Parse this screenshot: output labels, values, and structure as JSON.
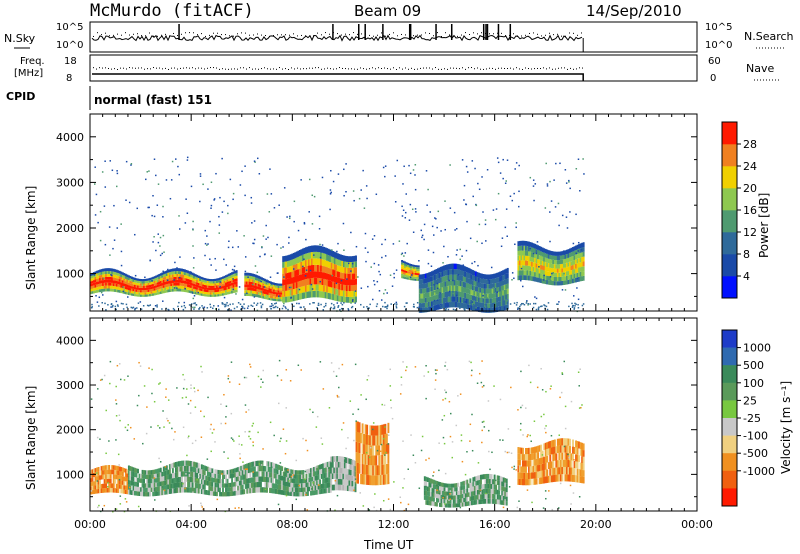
{
  "header": {
    "title": "McMurdo (fitACF)",
    "beam": "Beam 09",
    "date": "14/Sep/2010"
  },
  "top_panels": {
    "nsky_label": "N.Sky",
    "nsearch_label": "N.Search",
    "noise_ticks_left": [
      "10^5",
      "10^0"
    ],
    "noise_ticks_right": [
      "10^5",
      "10^0"
    ],
    "freq_label_1": "Freq.",
    "freq_label_2": "[MHz]",
    "freq_ticks": [
      "18",
      "8"
    ],
    "nave_label": "Nave",
    "nave_ticks": [
      "60",
      "0"
    ],
    "cpid_label": "CPID",
    "cpid_value": "normal (fast) 151"
  },
  "chart_data": [
    {
      "type": "heatmap",
      "name": "Power",
      "ylabel": "Slant Range [km]",
      "colorbar_label": "Power [dB]",
      "ylim": [
        180,
        4500
      ],
      "xlim": [
        "00:00",
        "24:00"
      ],
      "yticks": [
        1000,
        2000,
        3000,
        4000
      ],
      "colorbar_ticks": [
        4,
        8,
        12,
        16,
        20,
        24,
        28
      ],
      "colors": [
        "#0010ff",
        "#1a4aa8",
        "#2f6a9a",
        "#4f9a70",
        "#8ec850",
        "#f0d000",
        "#f08020",
        "#ff1a00"
      ],
      "regions": [
        {
          "t0": 0.0,
          "t1": 5.8,
          "r0": 550,
          "r1": 1000,
          "level": 7
        },
        {
          "t0": 6.1,
          "t1": 7.6,
          "r0": 450,
          "r1": 900,
          "level": 7
        },
        {
          "t0": 7.6,
          "t1": 10.5,
          "r0": 420,
          "r1": 1500,
          "level": 7
        },
        {
          "t0": 12.3,
          "t1": 13.0,
          "r0": 900,
          "r1": 1300,
          "level": 6
        },
        {
          "t0": 13.0,
          "t1": 16.5,
          "r0": 200,
          "r1": 1100,
          "level": 3
        },
        {
          "t0": 16.9,
          "t1": 19.5,
          "r0": 800,
          "r1": 1600,
          "level": 5
        }
      ]
    },
    {
      "type": "heatmap",
      "name": "Velocity",
      "ylabel": "Slant Range [km]",
      "xlabel": "Time UT",
      "colorbar_label": "Velocity [m s⁻¹]",
      "ylim": [
        180,
        4500
      ],
      "xlim": [
        "00:00",
        "24:00"
      ],
      "yticks": [
        1000,
        2000,
        3000,
        4000
      ],
      "xticks": [
        "00:00",
        "04:00",
        "08:00",
        "12:00",
        "16:00",
        "20:00",
        "00:00"
      ],
      "colorbar_ticks": [
        "1000",
        "500",
        "100",
        "25",
        "-25",
        "-100",
        "-500",
        "-1000"
      ],
      "colors": [
        "#1e3cc8",
        "#2f6ab0",
        "#3a8a5a",
        "#5a9a5a",
        "#78c840",
        "#c8c8c8",
        "#f0d080",
        "#f09020",
        "#f06010",
        "#ff1a00"
      ],
      "regions": [
        {
          "t0": 0.0,
          "t1": 1.5,
          "r0": 550,
          "r1": 1100,
          "level": "orange"
        },
        {
          "t0": 1.5,
          "t1": 9.5,
          "r0": 550,
          "r1": 1200,
          "level": "green"
        },
        {
          "t0": 9.5,
          "t1": 10.5,
          "r0": 600,
          "r1": 1300,
          "level": "gray"
        },
        {
          "t0": 10.5,
          "t1": 11.8,
          "r0": 800,
          "r1": 2200,
          "level": "orange"
        },
        {
          "t0": 13.2,
          "t1": 16.5,
          "r0": 300,
          "r1": 900,
          "level": "green"
        },
        {
          "t0": 16.9,
          "t1": 19.5,
          "r0": 800,
          "r1": 1700,
          "level": "orange"
        }
      ]
    }
  ]
}
